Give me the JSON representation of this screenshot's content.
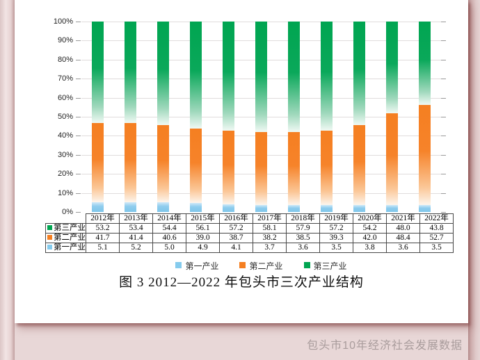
{
  "page": {
    "caption": "包头市10年经济社会发展数据",
    "background_color": "#e8d7d7",
    "panel_color": "#ffffff",
    "accent_shadow_color": "#8a4a4a"
  },
  "chart_data": {
    "type": "bar",
    "variant": "stacked-100-percent",
    "title": "图 3 2012—2022 年包头市三次产业结构",
    "categories": [
      "2012年",
      "2013年",
      "2014年",
      "2015年",
      "2016年",
      "2017年",
      "2018年",
      "2019年",
      "2020年",
      "2021年",
      "2022年"
    ],
    "series": [
      {
        "name": "第一产业",
        "color": "#85cbed",
        "values": [
          5.1,
          5.2,
          5.0,
          4.9,
          4.1,
          3.7,
          3.6,
          3.5,
          3.8,
          3.6,
          3.5
        ]
      },
      {
        "name": "第二产业",
        "color": "#f57f21",
        "values": [
          41.7,
          41.4,
          40.6,
          39.0,
          38.7,
          38.2,
          38.5,
          39.3,
          42.0,
          48.4,
          52.7
        ]
      },
      {
        "name": "第三产业",
        "color": "#00a551",
        "values": [
          53.2,
          53.4,
          54.4,
          56.1,
          57.2,
          58.1,
          57.9,
          57.2,
          54.2,
          48.0,
          43.8
        ]
      }
    ],
    "xlabel": "",
    "ylabel": "",
    "ylim": [
      0,
      100
    ],
    "y_tick_step": 10,
    "y_tick_suffix": "%",
    "grid": true,
    "legend_position": "bottom",
    "table_row_order": [
      "第三产业",
      "第二产业",
      "第一产业"
    ],
    "value_decimals": 1
  }
}
